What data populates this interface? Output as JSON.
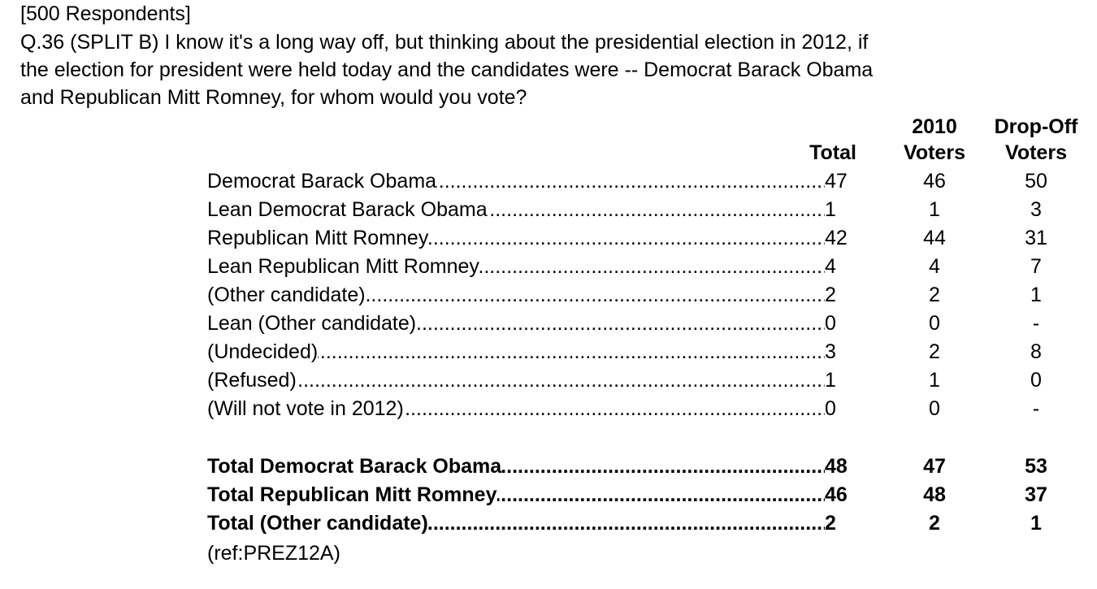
{
  "header": {
    "respondents": "[500 Respondents]",
    "question_lines": [
      "Q.36 (SPLIT B) I know it's a long way off, but thinking about the presidential election in 2012, if",
      "the election for president were held today and the candidates were -- Democrat Barack Obama",
      "and Republican Mitt Romney, for whom would you vote?"
    ]
  },
  "columns": {
    "total": "Total",
    "voters_2010_line1": "2010",
    "voters_2010_line2": "Voters",
    "dropoff_line1": "Drop-Off",
    "dropoff_line2": "Voters"
  },
  "rows": [
    {
      "label": "Democrat Barack Obama ",
      "total": "47",
      "v2010": "46",
      "dropoff": "50"
    },
    {
      "label": "Lean Democrat Barack Obama ",
      "total": "1",
      "v2010": "1",
      "dropoff": "3"
    },
    {
      "label": "Republican Mitt Romney",
      "total": "42",
      "v2010": "44",
      "dropoff": "31"
    },
    {
      "label": "Lean Republican Mitt Romney",
      "total": "4",
      "v2010": "4",
      "dropoff": "7"
    },
    {
      "label": "(Other candidate) ",
      "total": "2",
      "v2010": "2",
      "dropoff": "1"
    },
    {
      "label": "Lean (Other candidate) ",
      "total": "0",
      "v2010": "0",
      "dropoff": "-"
    },
    {
      "label": "(Undecided) ",
      "total": "3",
      "v2010": "2",
      "dropoff": "8"
    },
    {
      "label": "(Refused) ",
      "total": "1",
      "v2010": "1",
      "dropoff": "0"
    },
    {
      "label": "(Will not vote in 2012) ",
      "total": "0",
      "v2010": "0",
      "dropoff": "-"
    }
  ],
  "totals": [
    {
      "label": "Total Democrat Barack Obama",
      "total": "48",
      "v2010": "47",
      "dropoff": "53"
    },
    {
      "label": "Total Republican Mitt Romney",
      "total": "46",
      "v2010": "48",
      "dropoff": "37"
    },
    {
      "label": "Total (Other candidate)",
      "total": "2",
      "v2010": "2",
      "dropoff": "1"
    }
  ],
  "footer": {
    "ref": "(ref:PREZ12A)"
  },
  "dot_leader": "................................................................................................................................................................"
}
